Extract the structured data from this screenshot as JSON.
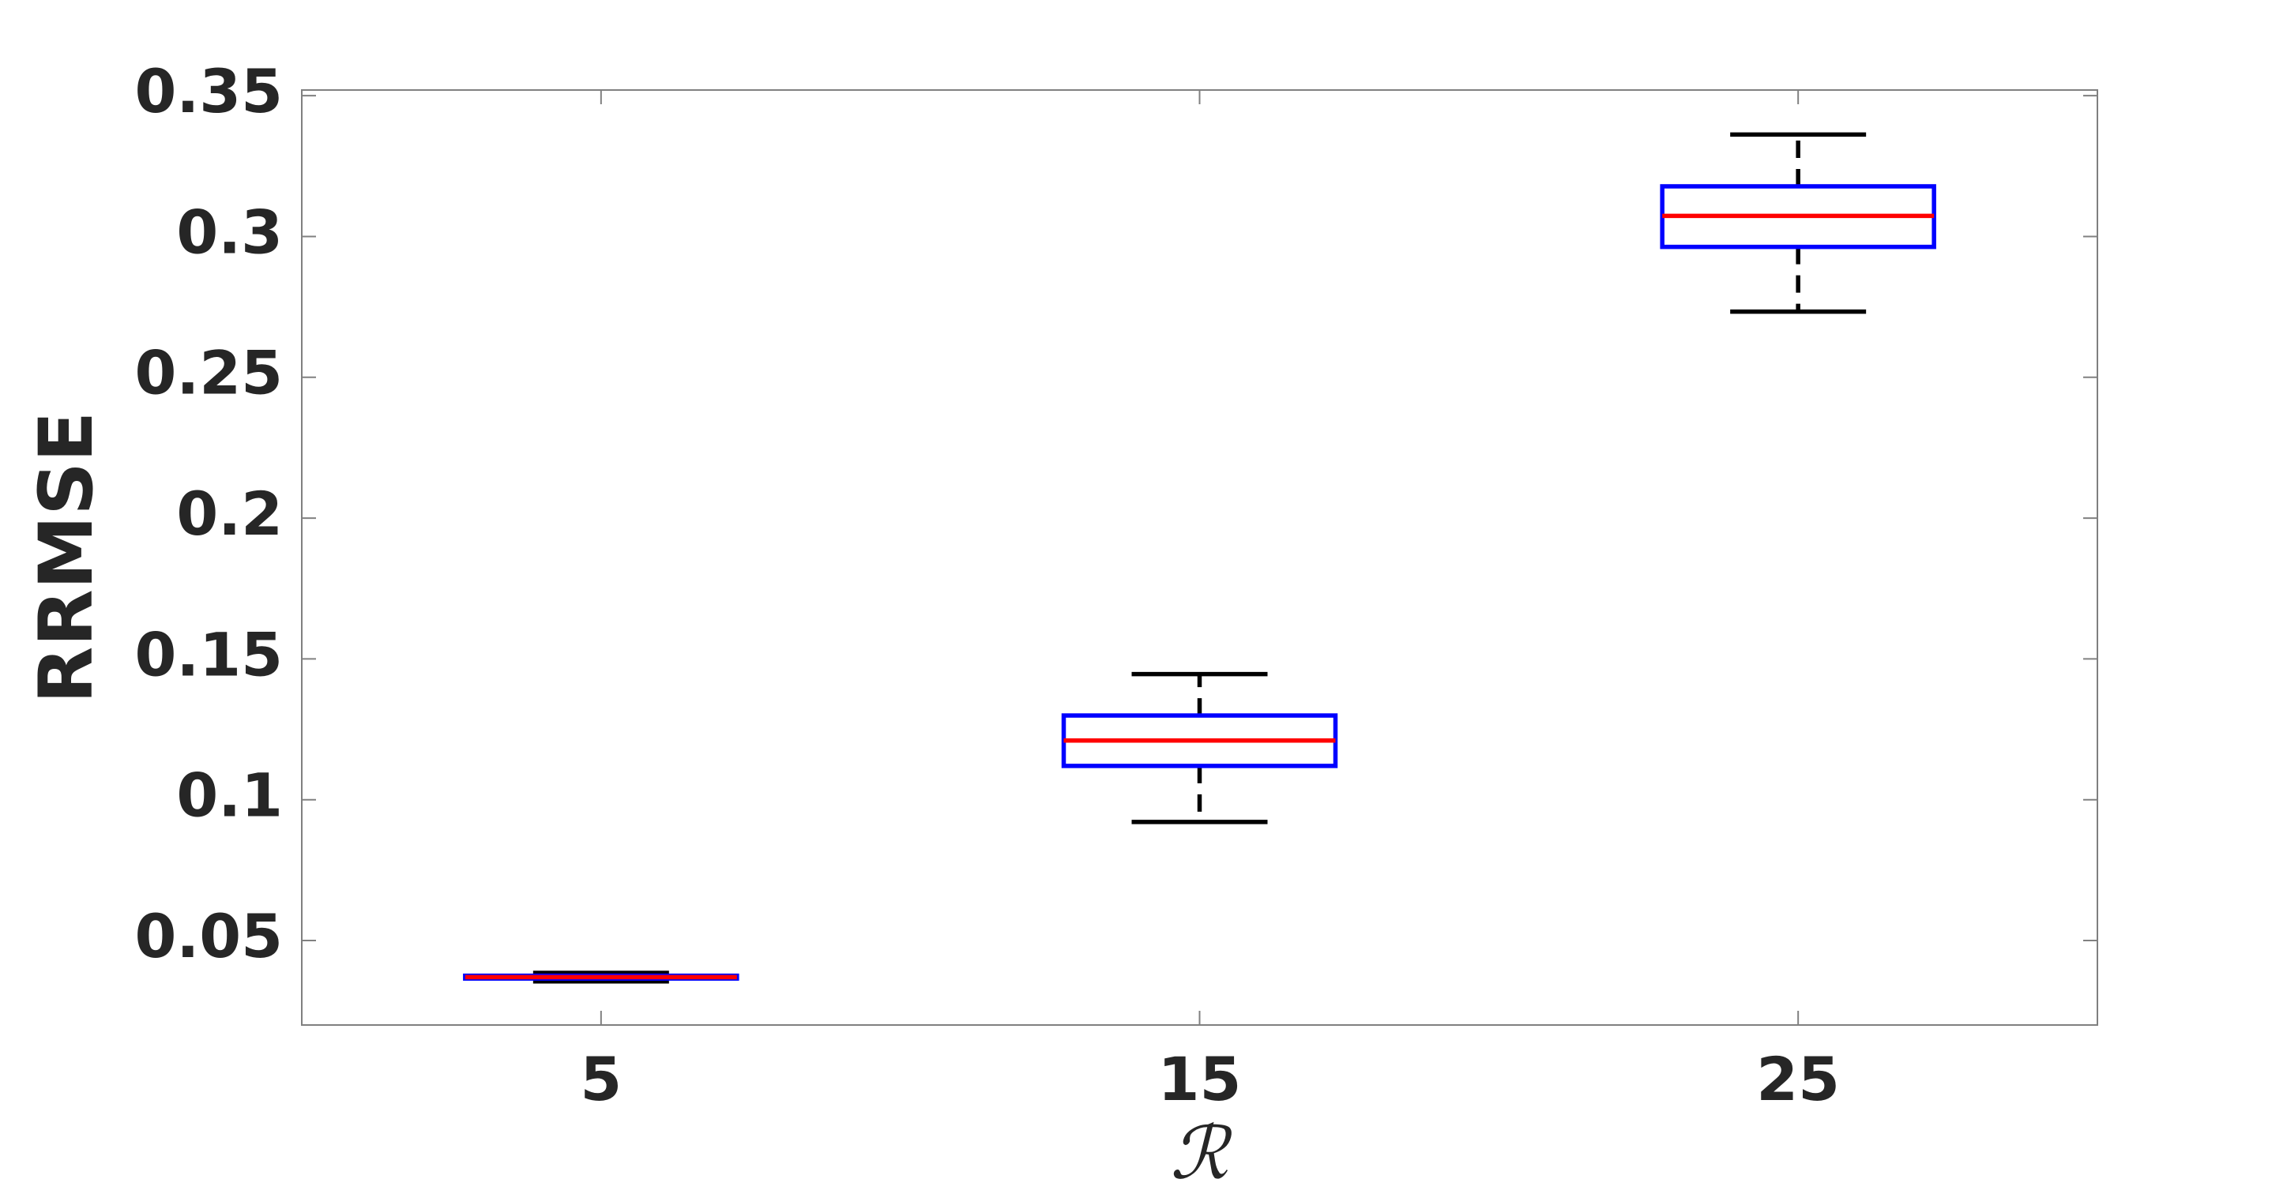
{
  "chart_data": {
    "type": "box",
    "xlabel": "ℛ",
    "ylabel": "RRMSE",
    "categories": [
      "5",
      "15",
      "25"
    ],
    "boxes": [
      {
        "min": 0.0355,
        "q1": 0.0365,
        "median": 0.037,
        "q3": 0.0375,
        "max": 0.0385
      },
      {
        "min": 0.0921,
        "q1": 0.112,
        "median": 0.121,
        "q3": 0.1299,
        "max": 0.1446
      },
      {
        "min": 0.2733,
        "q1": 0.2963,
        "median": 0.3073,
        "q3": 0.3178,
        "max": 0.3362
      }
    ],
    "box_color": "#0000ff",
    "median_color": "#ff0000",
    "whisker_color": "#000000",
    "ylim": [
      0.02,
      0.352
    ],
    "yticks": [
      0.05,
      0.1,
      0.15,
      0.2,
      0.25,
      0.3,
      0.35
    ]
  }
}
